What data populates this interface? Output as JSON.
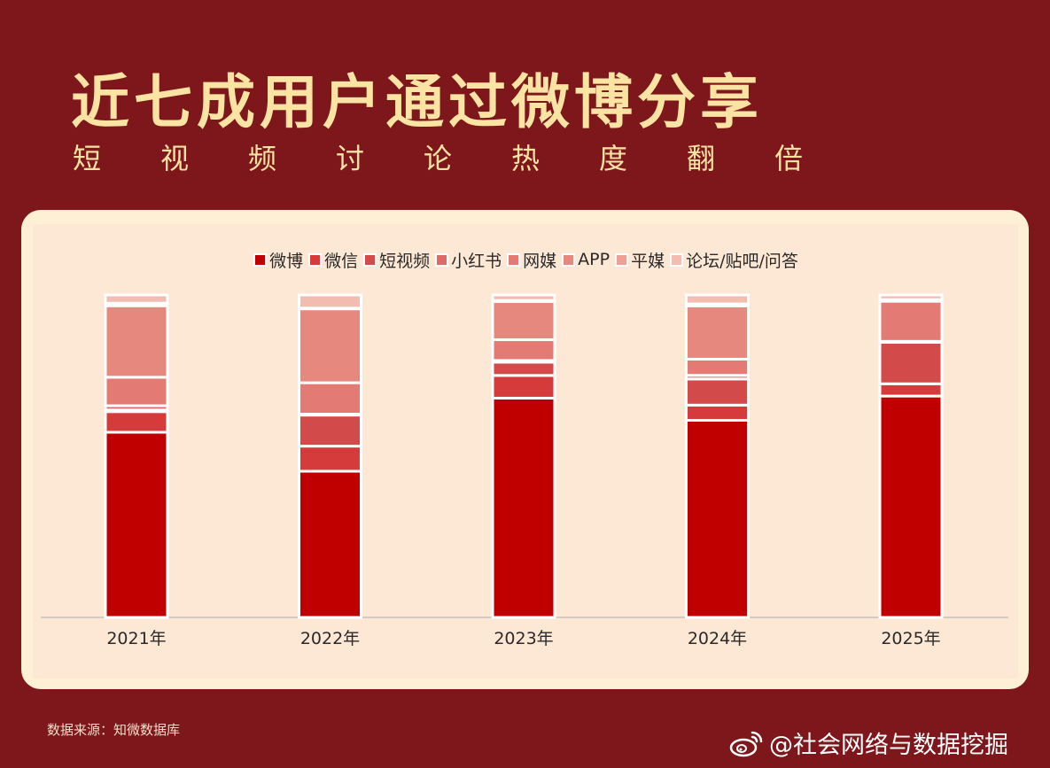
{
  "title": "近七成用户通过微博分享",
  "subtitle": "短视频讨论热度翻倍",
  "source": "数据来源：知微数据库",
  "watermark": {
    "icon": "weibo-logo-icon",
    "text": "@社会网络与数据挖掘"
  },
  "colors": {
    "background": "#7e171b",
    "title": "#fbe3a3",
    "card": "#fde7d5"
  },
  "chart_data": {
    "type": "bar",
    "stacked": true,
    "percent": true,
    "categories": [
      "2021年",
      "2022年",
      "2023年",
      "2024年",
      "2025年"
    ],
    "ylim": [
      0,
      100
    ],
    "grid": false,
    "legend_position": "top",
    "series": [
      {
        "name": "微博",
        "color": "#c00000",
        "values": [
          56.5,
          44.3,
          67.6,
          59.6,
          66.8
        ]
      },
      {
        "name": "微信",
        "color": "#d53b3b",
        "values": [
          6.3,
          7.6,
          7.0,
          4.6,
          3.7
        ]
      },
      {
        "name": "短视频",
        "color": "#d34a4a",
        "values": [
          0.5,
          9.4,
          4.1,
          7.9,
          12.5
        ]
      },
      {
        "name": "小红书",
        "color": "#de6a66",
        "values": [
          1.3,
          0.3,
          0.5,
          1.1,
          0.3
        ]
      },
      {
        "name": "网媒",
        "color": "#e37b74",
        "values": [
          8.7,
          9.5,
          6.4,
          4.9,
          12.1
        ]
      },
      {
        "name": "APP",
        "color": "#e6887e",
        "values": [
          21.8,
          22.4,
          11.8,
          16.1,
          0.0
        ]
      },
      {
        "name": "平媒",
        "color": "#eea096",
        "values": [
          0.8,
          0.2,
          0.3,
          0.6,
          0.5
        ]
      },
      {
        "name": "论坛/贴吧/问答",
        "color": "#f2bcb0",
        "values": [
          2.5,
          4.0,
          1.7,
          2.7,
          1.4
        ]
      }
    ]
  }
}
